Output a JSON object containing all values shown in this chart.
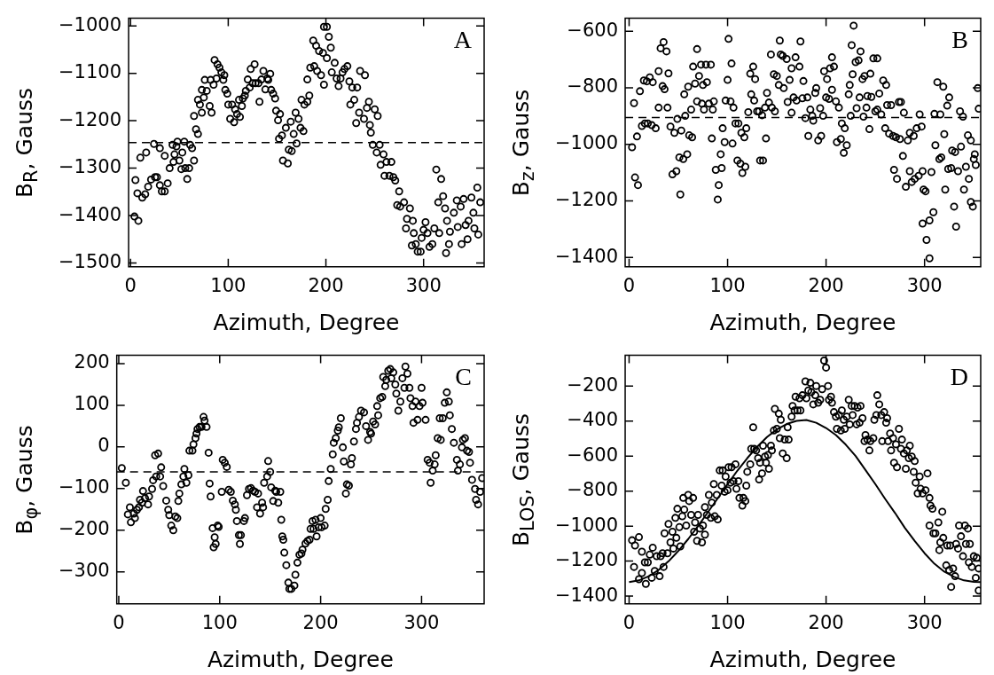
{
  "chart_data": [
    {
      "type": "scatter",
      "xlabel": "Azimuth, Degree",
      "ylabel": "B$_{R}$, Gauss",
      "annotations": [
        "A"
      ],
      "xlim": [
        -2,
        362
      ],
      "ylim": [
        -1508,
        -984
      ],
      "xticks": [
        0,
        100,
        200,
        300
      ],
      "yticks": [
        -1500,
        -1400,
        -1300,
        -1200,
        -1100,
        -1000
      ],
      "grid": false,
      "legend": false,
      "marker": "circle",
      "ref_lines": [
        {
          "axis": "y",
          "value": -1246,
          "color": "#000000",
          "line_style": "dashed"
        }
      ],
      "series": [
        {
          "color": "#000000",
          "x": [
            4,
            8,
            5,
            7,
            10,
            12,
            15,
            16,
            18,
            21,
            24,
            25,
            27,
            30,
            30,
            32,
            35,
            35,
            38,
            40,
            43,
            45,
            44,
            47,
            48,
            50,
            52,
            53,
            55,
            56,
            58,
            60,
            61,
            63,
            65,
            65,
            67,
            69,
            69,
            71,
            73,
            73,
            75,
            76,
            78,
            81,
            82,
            83,
            85,
            86,
            88,
            89,
            91,
            93,
            95,
            96,
            97,
            99,
            100,
            102,
            104,
            106,
            107,
            109,
            111,
            112,
            114,
            115,
            117,
            118,
            120,
            122,
            123,
            125,
            127,
            128,
            131,
            132,
            134,
            136,
            138,
            140,
            141,
            143,
            144,
            146,
            148,
            149,
            151,
            153,
            152,
            155,
            156,
            159,
            161,
            162,
            164,
            165,
            167,
            169,
            170,
            172,
            174,
            175,
            177,
            178,
            181,
            181,
            183,
            184,
            187,
            188,
            190,
            191,
            193,
            195,
            197,
            198,
            198,
            201,
            201,
            203,
            205,
            206,
            209,
            211,
            213,
            215,
            217,
            219,
            222,
            224,
            225,
            227,
            229,
            231,
            232,
            234,
            235,
            239,
            240,
            242,
            244,
            245,
            246,
            248,
            250,
            252,
            253,
            255,
            256,
            259,
            260,
            262,
            265,
            267,
            269,
            271,
            273,
            275,
            276,
            280,
            282,
            283,
            286,
            288,
            289,
            290,
            292,
            294,
            297,
            298,
            300,
            302,
            304,
            306,
            309,
            311,
            313,
            315,
            316,
            318,
            320,
            322,
            323,
            324,
            326,
            327,
            331,
            334,
            335,
            338,
            339,
            341,
            343,
            345,
            346,
            349,
            351,
            352,
            355,
            356,
            358
          ],
          "values": [
            -1402,
            -1411,
            -1325,
            -1353,
            -1278,
            -1362,
            -1355,
            -1267,
            -1339,
            -1324,
            -1249,
            -1319,
            -1319,
            -1258,
            -1336,
            -1349,
            -1274,
            -1349,
            -1332,
            -1300,
            -1251,
            -1271,
            -1287,
            -1254,
            -1244,
            -1284,
            -1302,
            -1267,
            -1244,
            -1300,
            -1323,
            -1300,
            -1251,
            -1258,
            -1284,
            -1190,
            -1218,
            -1228,
            -1156,
            -1166,
            -1135,
            -1183,
            -1151,
            -1114,
            -1137,
            -1169,
            -1114,
            -1183,
            -1124,
            -1072,
            -1111,
            -1081,
            -1088,
            -1098,
            -1114,
            -1104,
            -1135,
            -1143,
            -1166,
            -1196,
            -1166,
            -1203,
            -1176,
            -1186,
            -1156,
            -1192,
            -1169,
            -1153,
            -1147,
            -1137,
            -1113,
            -1130,
            -1091,
            -1121,
            -1081,
            -1121,
            -1121,
            -1160,
            -1113,
            -1095,
            -1134,
            -1111,
            -1114,
            -1101,
            -1135,
            -1143,
            -1153,
            -1179,
            -1199,
            -1186,
            -1238,
            -1231,
            -1284,
            -1215,
            -1290,
            -1261,
            -1202,
            -1264,
            -1228,
            -1183,
            -1248,
            -1196,
            -1215,
            -1156,
            -1222,
            -1166,
            -1160,
            -1113,
            -1147,
            -1088,
            -1031,
            -1085,
            -1042,
            -1095,
            -1053,
            -1104,
            -1057,
            -1124,
            -1002,
            -1002,
            -1068,
            -1023,
            -1046,
            -1098,
            -1078,
            -1111,
            -1127,
            -1111,
            -1098,
            -1091,
            -1085,
            -1117,
            -1166,
            -1130,
            -1156,
            -1205,
            -1130,
            -1183,
            -1095,
            -1196,
            -1104,
            -1173,
            -1160,
            -1209,
            -1225,
            -1251,
            -1176,
            -1267,
            -1190,
            -1251,
            -1293,
            -1271,
            -1316,
            -1287,
            -1316,
            -1287,
            -1319,
            -1326,
            -1378,
            -1349,
            -1381,
            -1372,
            -1427,
            -1407,
            -1385,
            -1463,
            -1411,
            -1437,
            -1460,
            -1476,
            -1476,
            -1447,
            -1430,
            -1414,
            -1437,
            -1466,
            -1460,
            -1427,
            -1303,
            -1372,
            -1437,
            -1323,
            -1359,
            -1385,
            -1479,
            -1411,
            -1460,
            -1434,
            -1394,
            -1368,
            -1424,
            -1381,
            -1460,
            -1365,
            -1420,
            -1450,
            -1411,
            -1362,
            -1394,
            -1427,
            -1341,
            -1440,
            -1372
          ]
        }
      ]
    },
    {
      "type": "scatter",
      "xlabel": "Azimuth, Degree",
      "ylabel": "B$_{z}$, Gauss",
      "annotations": [
        "B"
      ],
      "xlim": [
        -4,
        357
      ],
      "ylim": [
        -1433,
        -554
      ],
      "xticks": [
        0,
        100,
        200,
        300
      ],
      "yticks": [
        -1400,
        -1200,
        -1000,
        -800,
        -600
      ],
      "grid": false,
      "legend": false,
      "marker": "circle",
      "ref_lines": [
        {
          "axis": "y",
          "value": -905,
          "color": "#000000",
          "line_style": "dashed"
        }
      ],
      "series": [
        {
          "color": "#000000",
          "x": [
            3,
            5,
            6,
            8,
            9,
            11,
            13,
            15,
            16,
            18,
            19,
            21,
            23,
            24,
            27,
            30,
            30,
            32,
            34,
            35,
            36,
            38,
            39,
            40,
            42,
            44,
            46,
            48,
            49,
            51,
            52,
            53,
            55,
            56,
            57,
            59,
            60,
            61,
            63,
            64,
            65,
            67,
            69,
            69,
            71,
            73,
            74,
            75,
            76,
            78,
            79,
            81,
            83,
            84,
            85,
            86,
            88,
            90,
            91,
            93,
            94,
            95,
            97,
            98,
            100,
            101,
            103,
            104,
            105,
            106,
            108,
            110,
            111,
            113,
            114,
            115,
            117,
            118,
            119,
            121,
            123,
            124,
            126,
            127,
            128,
            130,
            132,
            133,
            135,
            136,
            138,
            139,
            140,
            142,
            144,
            145,
            147,
            148,
            150,
            152,
            153,
            154,
            156,
            157,
            160,
            161,
            163,
            165,
            165,
            167,
            169,
            170,
            173,
            174,
            176,
            177,
            179,
            181,
            182,
            184,
            186,
            187,
            189,
            190,
            192,
            194,
            195,
            197,
            198,
            200,
            201,
            203,
            204,
            206,
            206,
            208,
            210,
            211,
            213,
            215,
            216,
            218,
            219,
            221,
            223,
            224,
            225,
            226,
            227,
            228,
            230,
            231,
            233,
            234,
            235,
            237,
            238,
            239,
            241,
            242,
            244,
            245,
            246,
            248,
            250,
            252,
            252,
            254,
            256,
            258,
            260,
            261,
            262,
            264,
            266,
            268,
            269,
            271,
            272,
            274,
            275,
            276,
            278,
            279,
            281,
            283,
            285,
            285,
            287,
            289,
            290,
            292,
            294,
            295,
            297,
            298,
            299,
            301,
            298,
            302,
            305,
            305,
            307,
            309,
            310,
            311,
            313,
            315,
            316,
            317,
            319,
            320,
            321,
            323,
            324,
            325,
            327,
            328,
            330,
            331,
            332,
            334,
            336,
            337,
            339,
            340,
            342,
            344,
            345,
            347,
            347,
            349,
            350,
            351,
            352,
            354,
            355
          ],
          "values": [
            -1010,
            -854,
            -1117,
            -972,
            -1144,
            -812,
            -935,
            -774,
            -926,
            -777,
            -926,
            -763,
            -932,
            -780,
            -943,
            -741,
            -870,
            -660,
            -794,
            -638,
            -805,
            -671,
            -870,
            -749,
            -937,
            -1106,
            -959,
            -1095,
            -910,
            -1046,
            -1177,
            -951,
            -1052,
            -823,
            -899,
            -1035,
            -796,
            -968,
            -877,
            -975,
            -725,
            -785,
            -663,
            -848,
            -758,
            -718,
            -856,
            -790,
            -877,
            -718,
            -780,
            -856,
            -718,
            -979,
            -877,
            -848,
            -1090,
            -1195,
            -1144,
            -1035,
            -1084,
            -943,
            -992,
            -845,
            -772,
            -627,
            -848,
            -714,
            -997,
            -870,
            -926,
            -1057,
            -926,
            -1068,
            -959,
            -1101,
            -975,
            -1079,
            -943,
            -886,
            -750,
            -823,
            -725,
            -845,
            -769,
            -883,
            -883,
            -1057,
            -897,
            -1057,
            -870,
            -979,
            -818,
            -852,
            -682,
            -870,
            -752,
            -883,
            -758,
            -790,
            -633,
            -682,
            -687,
            -801,
            -698,
            -850,
            -772,
            -888,
            -731,
            -834,
            -692,
            -845,
            -725,
            -636,
            -837,
            -776,
            -907,
            -834,
            -970,
            -877,
            -899,
            -916,
            -818,
            -801,
            -986,
            -872,
            -970,
            -899,
            -741,
            -834,
            -769,
            -839,
            -731,
            -692,
            -807,
            -725,
            -848,
            -992,
            -870,
            -981,
            -926,
            -1030,
            -943,
            -1003,
            -823,
            -790,
            -899,
            -649,
            -752,
            -580,
            -709,
            -872,
            -703,
            -834,
            -671,
            -769,
            -902,
            -758,
            -870,
            -829,
            -946,
            -750,
            -832,
            -696,
            -883,
            -696,
            -877,
            -820,
            -894,
            -774,
            -943,
            -790,
            -861,
            -962,
            -861,
            -970,
            -1090,
            -975,
            -1122,
            -850,
            -981,
            -850,
            -1041,
            -888,
            -1150,
            -986,
            -1095,
            -959,
            -1133,
            -970,
            -1122,
            -943,
            -1111,
            -894,
            -937,
            -1095,
            -1160,
            -1166,
            -1280,
            -1338,
            -1269,
            -1403,
            -1098,
            -1240,
            -892,
            -1003,
            -780,
            -1052,
            -894,
            -1046,
            -796,
            -964,
            -1160,
            -863,
            -1087,
            -834,
            -1084,
            -1022,
            -1220,
            -1027,
            -1291,
            -1095,
            -883,
            -1008,
            -902,
            -1160,
            -1079,
            -968,
            -1122,
            -986,
            -1204,
            -1220,
            -1052,
            -1035,
            -1073,
            -801,
            -874
          ]
        }
      ]
    },
    {
      "type": "scatter",
      "xlabel": "Azimuth, Degree",
      "ylabel": "B$_{φ}$, Gauss",
      "annotations": [
        "C"
      ],
      "xlim": [
        -2,
        362
      ],
      "ylim": [
        -377,
        220
      ],
      "xticks": [
        0,
        100,
        200,
        300
      ],
      "yticks": [
        -300,
        -200,
        -100,
        0,
        100,
        200
      ],
      "grid": false,
      "legend": false,
      "marker": "circle",
      "ref_lines": [
        {
          "axis": "y",
          "value": -60,
          "color": "#000000",
          "line_style": "dashed"
        }
      ],
      "series": [
        {
          "color": "#000000",
          "x": [
            3,
            7,
            9,
            11,
            12,
            15,
            16,
            18,
            20,
            21,
            23,
            24,
            26,
            29,
            30,
            33,
            34,
            36,
            37,
            39,
            41,
            42,
            44,
            47,
            49,
            50,
            52,
            54,
            56,
            58,
            59,
            60,
            62,
            64,
            65,
            67,
            69,
            70,
            73,
            74,
            76,
            77,
            78,
            80,
            82,
            84,
            85,
            87,
            89,
            90,
            91,
            93,
            94,
            95,
            96,
            98,
            99,
            102,
            103,
            105,
            107,
            109,
            111,
            113,
            115,
            116,
            117,
            119,
            120,
            121,
            124,
            125,
            127,
            129,
            131,
            133,
            135,
            137,
            138,
            140,
            142,
            143,
            144,
            147,
            148,
            150,
            151,
            153,
            155,
            156,
            158,
            160,
            161,
            162,
            163,
            164,
            166,
            168,
            169,
            171,
            174,
            175,
            177,
            179,
            181,
            182,
            185,
            187,
            189,
            190,
            192,
            193,
            195,
            196,
            198,
            200,
            201,
            204,
            205,
            207,
            208,
            210,
            212,
            213,
            215,
            217,
            218,
            220,
            222,
            223,
            225,
            226,
            228,
            230,
            231,
            233,
            235,
            236,
            238,
            240,
            243,
            245,
            247,
            249,
            250,
            252,
            254,
            256,
            257,
            259,
            261,
            262,
            264,
            265,
            267,
            269,
            270,
            272,
            274,
            275,
            277,
            279,
            281,
            283,
            284,
            286,
            288,
            289,
            291,
            292,
            294,
            296,
            298,
            300,
            301,
            304,
            306,
            308,
            309,
            311,
            313,
            314,
            316,
            318,
            319,
            321,
            323,
            325,
            327,
            328,
            330,
            332,
            335,
            336,
            338,
            340,
            341,
            343,
            345,
            347,
            348,
            350,
            353,
            354,
            356,
            358,
            360
          ],
          "values": [
            -51,
            -86,
            -162,
            -145,
            -181,
            -160,
            -171,
            -151,
            -145,
            -127,
            -134,
            -106,
            -123,
            -138,
            -119,
            -101,
            -80,
            -20,
            -71,
            -16,
            -71,
            -49,
            -94,
            -129,
            -151,
            -164,
            -189,
            -200,
            -167,
            -171,
            -130,
            -112,
            -90,
            -71,
            -53,
            -86,
            -68,
            -9,
            -9,
            6,
            21,
            32,
            43,
            48,
            48,
            72,
            63,
            48,
            -14,
            -88,
            -119,
            -195,
            -241,
            -217,
            -233,
            -189,
            -192,
            -108,
            -31,
            -38,
            -48,
            -103,
            -108,
            -129,
            -138,
            -151,
            -178,
            -212,
            -233,
            -212,
            -178,
            -171,
            -116,
            -101,
            -99,
            -105,
            -108,
            -145,
            -112,
            -160,
            -134,
            -145,
            -86,
            -71,
            -34,
            -60,
            -97,
            -130,
            -105,
            -108,
            -134,
            -108,
            -175,
            -215,
            -223,
            -254,
            -284,
            -326,
            -341,
            -341,
            -333,
            -307,
            -278,
            -259,
            -256,
            -247,
            -232,
            -226,
            -223,
            -197,
            -178,
            -197,
            -175,
            -215,
            -193,
            -171,
            -193,
            -189,
            -149,
            -127,
            -82,
            -53,
            -18,
            10,
            21,
            39,
            47,
            69,
            -1,
            -35,
            -112,
            -90,
            -93,
            -42,
            -27,
            13,
            43,
            58,
            72,
            87,
            83,
            50,
            17,
            36,
            32,
            61,
            54,
            98,
            76,
            117,
            120,
            168,
            146,
            161,
            183,
            187,
            165,
            179,
            150,
            128,
            87,
            109,
            165,
            142,
            193,
            176,
            142,
            117,
            98,
            58,
            109,
            65,
            98,
            142,
            106,
            65,
            -31,
            -38,
            -86,
            -57,
            -42,
            -20,
            21,
            69,
            17,
            69,
            106,
            131,
            109,
            76,
            43,
            10,
            -31,
            -57,
            -42,
            -1,
            17,
            21,
            -9,
            -12,
            -38,
            -79,
            -101,
            -127,
            -138,
            -108,
            -75
          ]
        }
      ]
    },
    {
      "type": "scatter",
      "xlabel": "Azimuth, Degree",
      "ylabel": "B$_{LOS}$, Gauss",
      "annotations": [
        "D"
      ],
      "xlim": [
        -4,
        357
      ],
      "ylim": [
        -1444,
        -25
      ],
      "xticks": [
        0,
        100,
        200,
        300
      ],
      "yticks": [
        -1400,
        -1200,
        -1000,
        -800,
        -600,
        -400,
        -200
      ],
      "grid": false,
      "legend": false,
      "marker": "circle",
      "series": [
        {
          "color": "#000000",
          "x": [
            3,
            5,
            6,
            10,
            10,
            13,
            13,
            16,
            17,
            19,
            21,
            23,
            24,
            26,
            28,
            31,
            32,
            34,
            35,
            36,
            39,
            40,
            42,
            44,
            45,
            47,
            48,
            49,
            51,
            52,
            54,
            55,
            56,
            58,
            60,
            61,
            63,
            65,
            66,
            67,
            69,
            70,
            72,
            74,
            75,
            77,
            77,
            79,
            81,
            83,
            84,
            86,
            87,
            89,
            90,
            92,
            94,
            95,
            97,
            98,
            100,
            101,
            103,
            104,
            106,
            108,
            109,
            111,
            112,
            115,
            116,
            118,
            119,
            120,
            123,
            124,
            126,
            127,
            129,
            131,
            132,
            133,
            135,
            136,
            138,
            139,
            141,
            142,
            144,
            145,
            147,
            148,
            150,
            152,
            153,
            154,
            156,
            158,
            160,
            161,
            162,
            165,
            166,
            168,
            169,
            171,
            173,
            174,
            176,
            179,
            180,
            182,
            184,
            185,
            187,
            189,
            190,
            192,
            194,
            196,
            198,
            200,
            202,
            203,
            205,
            206,
            208,
            210,
            211,
            213,
            215,
            216,
            218,
            219,
            221,
            223,
            224,
            226,
            227,
            229,
            231,
            232,
            234,
            235,
            237,
            239,
            240,
            242,
            244,
            245,
            248,
            249,
            251,
            252,
            254,
            256,
            257,
            259,
            261,
            262,
            263,
            265,
            266,
            268,
            269,
            271,
            272,
            274,
            276,
            277,
            279,
            281,
            282,
            284,
            285,
            287,
            289,
            290,
            291,
            293,
            295,
            296,
            298,
            301,
            303,
            305,
            306,
            308,
            305,
            309,
            311,
            314,
            315,
            316,
            318,
            319,
            322,
            323,
            325,
            326,
            327,
            329,
            331,
            332,
            334,
            335,
            337,
            339,
            341,
            342,
            344,
            345,
            346,
            348,
            350,
            352,
            353,
            355,
            355
          ],
          "values": [
            -1081,
            -1233,
            -1111,
            -1063,
            -1303,
            -1146,
            -1268,
            -1207,
            -1330,
            -1207,
            -1163,
            -1295,
            -1123,
            -1256,
            -1172,
            -1286,
            -1172,
            -1155,
            -1233,
            -1041,
            -1155,
            -988,
            -1093,
            -1032,
            -1128,
            -953,
            -1067,
            -901,
            -1006,
            -1116,
            -944,
            -839,
            -906,
            -997,
            -822,
            -857,
            -936,
            -839,
            -1032,
            -979,
            -1084,
            -936,
            -1014,
            -1093,
            -997,
            -892,
            -1049,
            -936,
            -822,
            -953,
            -866,
            -760,
            -944,
            -822,
            -962,
            -682,
            -769,
            -682,
            -804,
            -717,
            -795,
            -664,
            -752,
            -664,
            -743,
            -647,
            -787,
            -743,
            -839,
            -883,
            -839,
            -857,
            -769,
            -690,
            -647,
            -559,
            -436,
            -559,
            -568,
            -612,
            -734,
            -638,
            -699,
            -541,
            -603,
            -638,
            -594,
            -673,
            -541,
            -568,
            -454,
            -331,
            -445,
            -358,
            -498,
            -393,
            -585,
            -506,
            -612,
            -436,
            -506,
            -375,
            -314,
            -340,
            -261,
            -340,
            -270,
            -340,
            -253,
            -174,
            -270,
            -226,
            -182,
            -235,
            -305,
            -253,
            -200,
            -296,
            -279,
            -218,
            -55,
            -95,
            -200,
            -279,
            -261,
            -296,
            -349,
            -375,
            -445,
            -366,
            -454,
            -340,
            -393,
            -445,
            -375,
            -279,
            -419,
            -314,
            -366,
            -314,
            -419,
            -323,
            -410,
            -314,
            -384,
            -515,
            -480,
            -506,
            -568,
            -515,
            -498,
            -393,
            -366,
            -253,
            -305,
            -366,
            -515,
            -349,
            -410,
            -384,
            -515,
            -471,
            -568,
            -498,
            -638,
            -533,
            -664,
            -445,
            -559,
            -506,
            -585,
            -673,
            -568,
            -612,
            -541,
            -603,
            -690,
            -629,
            -752,
            -813,
            -717,
            -787,
            -813,
            -795,
            -699,
            -839,
            -883,
            -901,
            -997,
            -1041,
            -1041,
            -979,
            -1137,
            -1093,
            -918,
            -1067,
            -1224,
            -1111,
            -1251,
            -1111,
            -1347,
            -1242,
            -1286,
            -1102,
            -1128,
            -997,
            -1058,
            -1172,
            -997,
            -1102,
            -1014,
            -1207,
            -1102,
            -1233,
            -1172,
            -1295,
            -1181,
            -1242,
            -1368
          ]
        },
        {
          "type": "line",
          "color": "#000000",
          "marker": "none",
          "x": [
            0,
            10,
            20,
            30,
            40,
            50,
            60,
            70,
            80,
            90,
            100,
            110,
            120,
            130,
            140,
            150,
            160,
            170,
            180,
            190,
            200,
            210,
            220,
            230,
            240,
            250,
            260,
            270,
            280,
            290,
            300,
            310,
            320,
            330,
            340,
            350,
            357
          ],
          "values": [
            -1320,
            -1310,
            -1286,
            -1250,
            -1201,
            -1142,
            -1074,
            -1000,
            -921,
            -841,
            -761,
            -683,
            -612,
            -547,
            -492,
            -448,
            -417,
            -399,
            -394,
            -410,
            -440,
            -480,
            -535,
            -600,
            -680,
            -760,
            -845,
            -925,
            -1010,
            -1085,
            -1155,
            -1215,
            -1260,
            -1290,
            -1310,
            -1318,
            -1320
          ]
        }
      ]
    }
  ]
}
